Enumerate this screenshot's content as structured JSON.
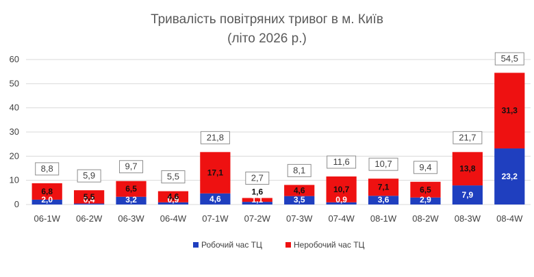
{
  "chart_data": {
    "type": "bar",
    "stacked": true,
    "title": "Тривалість повітряних тривог в м. Київ",
    "subtitle": "(літо 2026 р.)",
    "xlabel": "",
    "ylabel": "",
    "ylim": [
      0,
      60
    ],
    "yticks": [
      0,
      10,
      20,
      30,
      40,
      50,
      60
    ],
    "grid": true,
    "legend_position": "bottom",
    "categories": [
      "06-1W",
      "06-2W",
      "06-3W",
      "06-4W",
      "07-1W",
      "07-2W",
      "07-3W",
      "07-4W",
      "08-1W",
      "08-2W",
      "08-3W",
      "08-4W"
    ],
    "series": [
      {
        "name": "Робочий час ТЦ",
        "color": "#1F3FBF",
        "values": [
          2.0,
          0.4,
          3.2,
          0.9,
          4.6,
          1.1,
          3.5,
          0.9,
          3.6,
          2.9,
          7.9,
          23.2
        ],
        "labels": [
          "2,0",
          "0,4",
          "3,2",
          "0,9",
          "4,6",
          "1,1",
          "3,5",
          "0,9",
          "3,6",
          "2,9",
          "7,9",
          "23,2"
        ]
      },
      {
        "name": "Неробочий час ТЦ",
        "color": "#EE1111",
        "values": [
          6.8,
          5.5,
          6.5,
          4.6,
          17.1,
          1.6,
          4.6,
          10.7,
          7.1,
          6.5,
          13.8,
          31.3
        ],
        "labels": [
          "6,8",
          "5,5",
          "6,5",
          "4,6",
          "17,1",
          "1,6",
          "4,6",
          "10,7",
          "7,1",
          "6,5",
          "13,8",
          "31,3"
        ]
      }
    ],
    "totals": [
      8.8,
      5.9,
      9.7,
      5.5,
      21.8,
      2.7,
      8.1,
      11.6,
      10.7,
      9.4,
      21.7,
      54.5
    ],
    "total_labels": [
      "8,8",
      "5,9",
      "9,7",
      "5,5",
      "21,8",
      "2,7",
      "8,1",
      "11,6",
      "10,7",
      "9,4",
      "21,7",
      "54,5"
    ]
  },
  "colors": {
    "work_time": "#1F3FBF",
    "off_time": "#EE1111",
    "grid": "#D9D9D9",
    "text": "#404040"
  }
}
